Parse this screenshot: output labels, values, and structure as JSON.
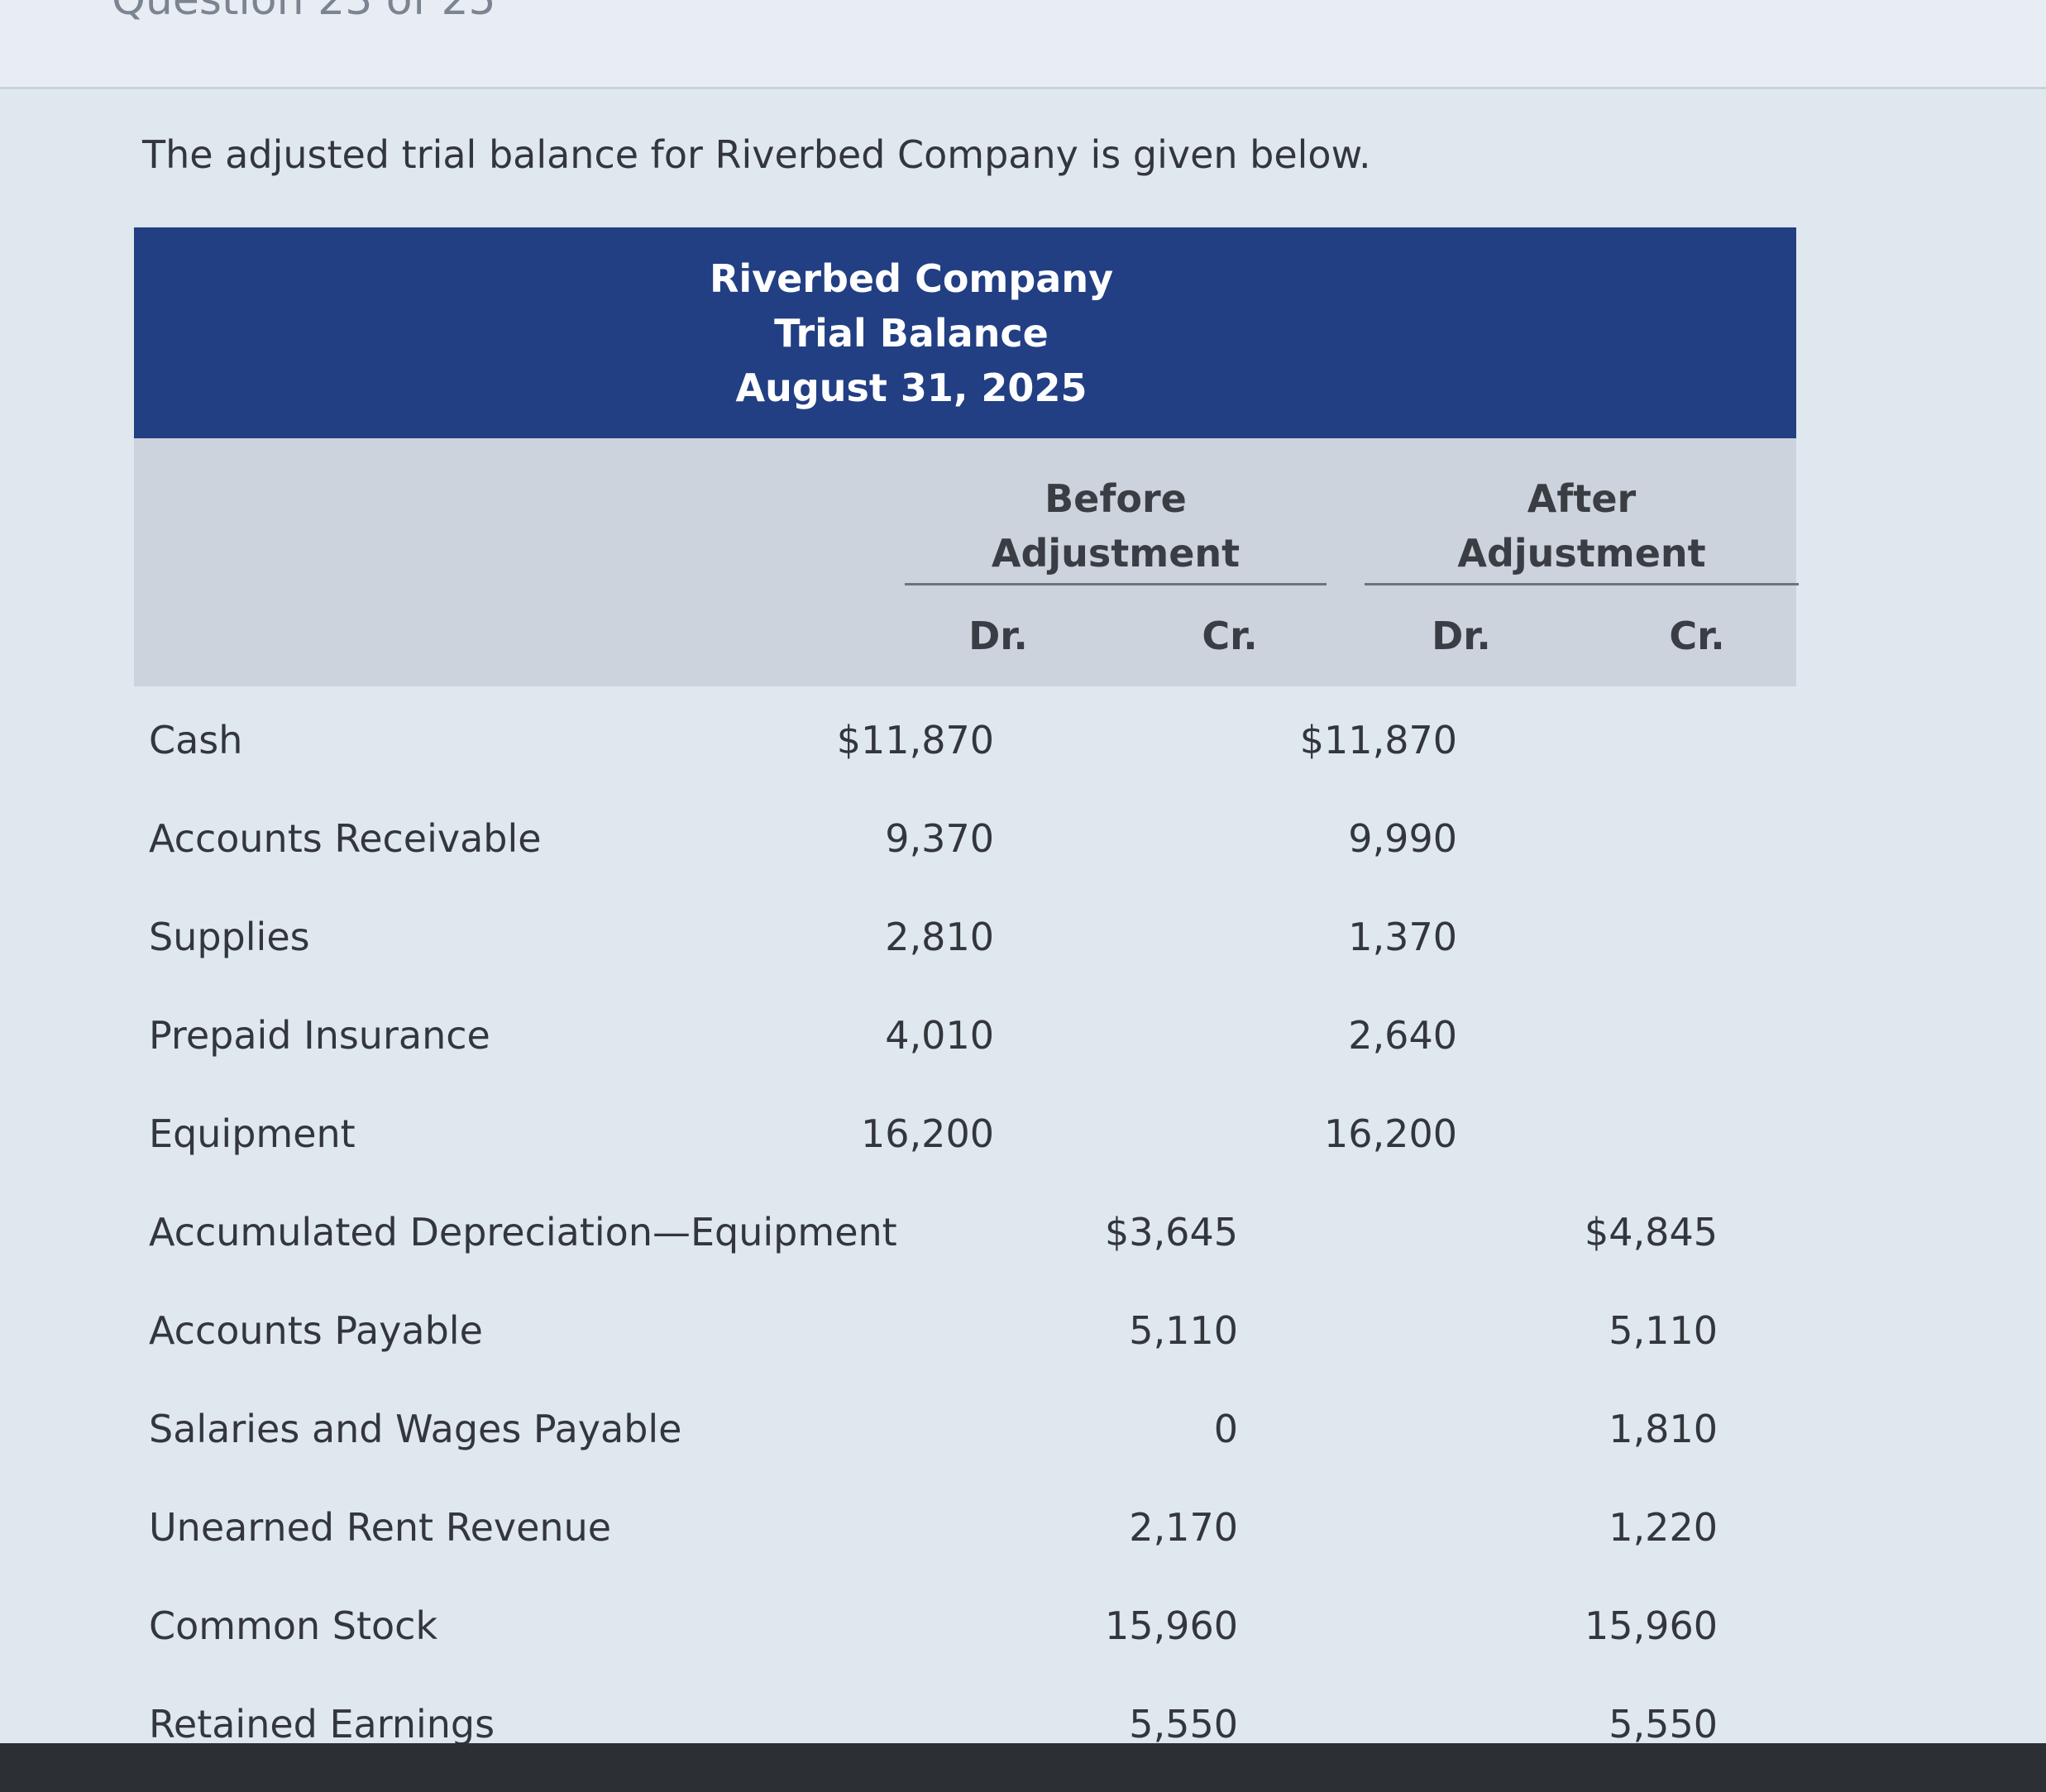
{
  "header": {
    "question_counter": "Question 23 of 25"
  },
  "intro_text": "The adjusted trial balance for Riverbed Company is given below.",
  "table": {
    "title_lines": [
      "Riverbed Company",
      "Trial Balance",
      "August 31, 2025"
    ],
    "groups": {
      "before_line1": "Before",
      "before_line2": "Adjustment",
      "after_line1": "After",
      "after_line2": "Adjustment"
    },
    "sub_headers": {
      "before_dr": "Dr.",
      "before_cr": "Cr.",
      "after_dr": "Dr.",
      "after_cr": "Cr."
    },
    "rows": [
      {
        "account": "Cash",
        "before_dr": "$11,870",
        "before_cr": "",
        "after_dr": "$11,870",
        "after_cr": ""
      },
      {
        "account": "Accounts Receivable",
        "before_dr": "9,370",
        "before_cr": "",
        "after_dr": "9,990",
        "after_cr": ""
      },
      {
        "account": "Supplies",
        "before_dr": "2,810",
        "before_cr": "",
        "after_dr": "1,370",
        "after_cr": ""
      },
      {
        "account": "Prepaid Insurance",
        "before_dr": "4,010",
        "before_cr": "",
        "after_dr": "2,640",
        "after_cr": ""
      },
      {
        "account": "Equipment",
        "before_dr": "16,200",
        "before_cr": "",
        "after_dr": "16,200",
        "after_cr": ""
      },
      {
        "account": "Accumulated Depreciation—Equipment",
        "before_dr": "",
        "before_cr": "$3,645",
        "after_dr": "",
        "after_cr": "$4,845"
      },
      {
        "account": "Accounts Payable",
        "before_dr": "",
        "before_cr": "5,110",
        "after_dr": "",
        "after_cr": "5,110"
      },
      {
        "account": "Salaries and Wages Payable",
        "before_dr": "",
        "before_cr": "0",
        "after_dr": "",
        "after_cr": "1,810"
      },
      {
        "account": "Unearned Rent Revenue",
        "before_dr": "",
        "before_cr": "2,170",
        "after_dr": "",
        "after_cr": "1,220"
      },
      {
        "account": "Common Stock",
        "before_dr": "",
        "before_cr": "15,960",
        "after_dr": "",
        "after_cr": "15,960"
      },
      {
        "account": "Retained Earnings",
        "before_dr": "",
        "before_cr": "5,550",
        "after_dr": "",
        "after_cr": "5,550"
      }
    ]
  }
}
